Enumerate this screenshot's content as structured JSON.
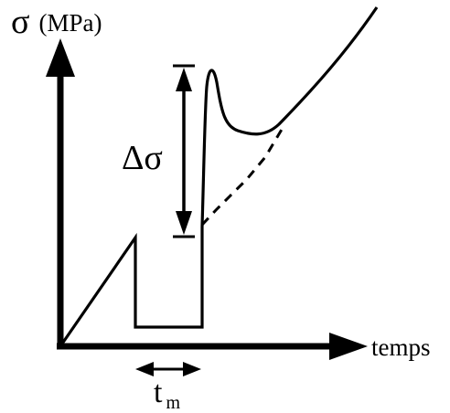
{
  "diagram": {
    "y_axis": {
      "symbol": "σ",
      "unit": "(MPa)"
    },
    "x_axis": {
      "label": "temps"
    },
    "stress_jump_label": {
      "symbol": "Δσ"
    },
    "hold_time_label": {
      "base": "t",
      "subscript": "m"
    }
  }
}
